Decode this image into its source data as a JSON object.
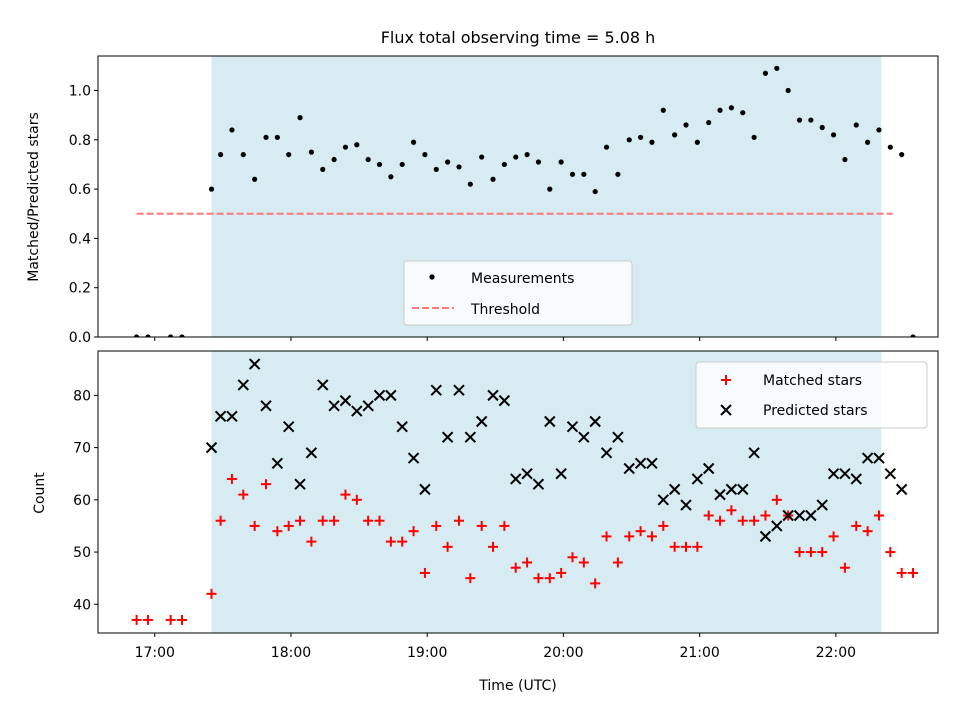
{
  "colors": {
    "shade": "#add8e6",
    "measurement": "#000000",
    "threshold": "#ff7777",
    "matched": "#ff0000",
    "predicted": "#000000"
  },
  "chart_data": [
    {
      "type": "scatter",
      "title": "Flux total observing time = 5.08 h",
      "xlabel": "",
      "ylabel": "Matched/Predicted stars",
      "xlim": [
        "16:35",
        "22:45"
      ],
      "ylim": [
        0,
        1.14
      ],
      "yticks": [
        0.0,
        0.2,
        0.4,
        0.6,
        0.8,
        1.0
      ],
      "ytick_labels": [
        "0.0",
        "0.2",
        "0.4",
        "0.6",
        "0.8",
        "1.0"
      ],
      "xticks": [
        "17:00",
        "18:00",
        "19:00",
        "20:00",
        "21:00",
        "22:00"
      ],
      "shaded_range": [
        "17:25",
        "22:20"
      ],
      "threshold": {
        "name": "Threshold",
        "y": 0.5,
        "x": [
          "16:52",
          "22:25"
        ]
      },
      "legend": {
        "position": "bottom-center",
        "entries": [
          "Measurements",
          "Threshold"
        ]
      },
      "series": [
        {
          "name": "Measurements",
          "points": [
            [
              "16:52",
              0.0
            ],
            [
              "16:57",
              0.0
            ],
            [
              "17:07",
              0.0
            ],
            [
              "17:12",
              0.0
            ],
            [
              "17:25",
              0.6
            ],
            [
              "17:29",
              0.74
            ],
            [
              "17:34",
              0.84
            ],
            [
              "17:39",
              0.74
            ],
            [
              "17:44",
              0.64
            ],
            [
              "17:49",
              0.81
            ],
            [
              "17:54",
              0.81
            ],
            [
              "17:59",
              0.74
            ],
            [
              "18:04",
              0.89
            ],
            [
              "18:09",
              0.75
            ],
            [
              "18:14",
              0.68
            ],
            [
              "18:19",
              0.72
            ],
            [
              "18:24",
              0.77
            ],
            [
              "18:29",
              0.78
            ],
            [
              "18:34",
              0.72
            ],
            [
              "18:39",
              0.7
            ],
            [
              "18:44",
              0.65
            ],
            [
              "18:49",
              0.7
            ],
            [
              "18:54",
              0.79
            ],
            [
              "18:59",
              0.74
            ],
            [
              "19:04",
              0.68
            ],
            [
              "19:09",
              0.71
            ],
            [
              "19:14",
              0.69
            ],
            [
              "19:19",
              0.62
            ],
            [
              "19:24",
              0.73
            ],
            [
              "19:29",
              0.64
            ],
            [
              "19:34",
              0.7
            ],
            [
              "19:39",
              0.73
            ],
            [
              "19:44",
              0.74
            ],
            [
              "19:49",
              0.71
            ],
            [
              "19:54",
              0.6
            ],
            [
              "19:59",
              0.71
            ],
            [
              "20:04",
              0.66
            ],
            [
              "20:09",
              0.66
            ],
            [
              "20:14",
              0.59
            ],
            [
              "20:19",
              0.77
            ],
            [
              "20:24",
              0.66
            ],
            [
              "20:29",
              0.8
            ],
            [
              "20:34",
              0.81
            ],
            [
              "20:39",
              0.79
            ],
            [
              "20:44",
              0.92
            ],
            [
              "20:49",
              0.82
            ],
            [
              "20:54",
              0.86
            ],
            [
              "20:59",
              0.79
            ],
            [
              "21:04",
              0.87
            ],
            [
              "21:09",
              0.92
            ],
            [
              "21:14",
              0.93
            ],
            [
              "21:19",
              0.91
            ],
            [
              "21:24",
              0.81
            ],
            [
              "21:29",
              1.07
            ],
            [
              "21:34",
              1.09
            ],
            [
              "21:39",
              1.0
            ],
            [
              "21:44",
              0.88
            ],
            [
              "21:49",
              0.88
            ],
            [
              "21:54",
              0.85
            ],
            [
              "21:59",
              0.82
            ],
            [
              "22:04",
              0.72
            ],
            [
              "22:09",
              0.86
            ],
            [
              "22:14",
              0.79
            ],
            [
              "22:19",
              0.84
            ],
            [
              "22:24",
              0.77
            ],
            [
              "22:29",
              0.74
            ],
            [
              "22:34",
              0.0
            ]
          ]
        }
      ]
    },
    {
      "type": "scatter",
      "title": "",
      "xlabel": "Time (UTC)",
      "ylabel": "Count",
      "xlim": [
        "16:35",
        "22:45"
      ],
      "ylim": [
        34.5,
        88.5
      ],
      "yticks": [
        40,
        50,
        60,
        70,
        80
      ],
      "ytick_labels": [
        "40",
        "50",
        "60",
        "70",
        "80"
      ],
      "xticks": [
        "17:00",
        "18:00",
        "19:00",
        "20:00",
        "21:00",
        "22:00"
      ],
      "xtick_labels": [
        "17:00",
        "18:00",
        "19:00",
        "20:00",
        "21:00",
        "22:00"
      ],
      "shaded_range": [
        "17:25",
        "22:20"
      ],
      "legend": {
        "position": "top-right",
        "entries": [
          "Matched stars",
          "Predicted stars"
        ]
      },
      "series": [
        {
          "name": "Matched stars",
          "marker": "plus",
          "points": [
            [
              "16:52",
              37
            ],
            [
              "16:57",
              37
            ],
            [
              "17:07",
              37
            ],
            [
              "17:12",
              37
            ],
            [
              "17:25",
              42
            ],
            [
              "17:29",
              56
            ],
            [
              "17:34",
              64
            ],
            [
              "17:39",
              61
            ],
            [
              "17:44",
              55
            ],
            [
              "17:49",
              63
            ],
            [
              "17:54",
              54
            ],
            [
              "17:59",
              55
            ],
            [
              "18:04",
              56
            ],
            [
              "18:09",
              52
            ],
            [
              "18:14",
              56
            ],
            [
              "18:19",
              56
            ],
            [
              "18:24",
              61
            ],
            [
              "18:29",
              60
            ],
            [
              "18:34",
              56
            ],
            [
              "18:39",
              56
            ],
            [
              "18:44",
              52
            ],
            [
              "18:49",
              52
            ],
            [
              "18:54",
              54
            ],
            [
              "18:59",
              46
            ],
            [
              "19:04",
              55
            ],
            [
              "19:09",
              51
            ],
            [
              "19:14",
              56
            ],
            [
              "19:19",
              45
            ],
            [
              "19:24",
              55
            ],
            [
              "19:29",
              51
            ],
            [
              "19:34",
              55
            ],
            [
              "19:39",
              47
            ],
            [
              "19:44",
              48
            ],
            [
              "19:49",
              45
            ],
            [
              "19:54",
              45
            ],
            [
              "19:59",
              46
            ],
            [
              "20:04",
              49
            ],
            [
              "20:09",
              48
            ],
            [
              "20:14",
              44
            ],
            [
              "20:19",
              53
            ],
            [
              "20:24",
              48
            ],
            [
              "20:29",
              53
            ],
            [
              "20:34",
              54
            ],
            [
              "20:39",
              53
            ],
            [
              "20:44",
              55
            ],
            [
              "20:49",
              51
            ],
            [
              "20:54",
              51
            ],
            [
              "20:59",
              51
            ],
            [
              "21:04",
              57
            ],
            [
              "21:09",
              56
            ],
            [
              "21:14",
              58
            ],
            [
              "21:19",
              56
            ],
            [
              "21:24",
              56
            ],
            [
              "21:29",
              57
            ],
            [
              "21:34",
              60
            ],
            [
              "21:39",
              57
            ],
            [
              "21:44",
              50
            ],
            [
              "21:49",
              50
            ],
            [
              "21:54",
              50
            ],
            [
              "21:59",
              53
            ],
            [
              "22:04",
              47
            ],
            [
              "22:09",
              55
            ],
            [
              "22:14",
              54
            ],
            [
              "22:19",
              57
            ],
            [
              "22:24",
              50
            ],
            [
              "22:29",
              46
            ],
            [
              "22:34",
              46
            ]
          ]
        },
        {
          "name": "Predicted stars",
          "marker": "x",
          "points": [
            [
              "17:25",
              70
            ],
            [
              "17:29",
              76
            ],
            [
              "17:34",
              76
            ],
            [
              "17:39",
              82
            ],
            [
              "17:44",
              86
            ],
            [
              "17:49",
              78
            ],
            [
              "17:54",
              67
            ],
            [
              "17:59",
              74
            ],
            [
              "18:04",
              63
            ],
            [
              "18:09",
              69
            ],
            [
              "18:14",
              82
            ],
            [
              "18:19",
              78
            ],
            [
              "18:24",
              79
            ],
            [
              "18:29",
              77
            ],
            [
              "18:34",
              78
            ],
            [
              "18:39",
              80
            ],
            [
              "18:44",
              80
            ],
            [
              "18:49",
              74
            ],
            [
              "18:54",
              68
            ],
            [
              "18:59",
              62
            ],
            [
              "19:04",
              81
            ],
            [
              "19:09",
              72
            ],
            [
              "19:14",
              81
            ],
            [
              "19:19",
              72
            ],
            [
              "19:24",
              75
            ],
            [
              "19:29",
              80
            ],
            [
              "19:34",
              79
            ],
            [
              "19:39",
              64
            ],
            [
              "19:44",
              65
            ],
            [
              "19:49",
              63
            ],
            [
              "19:54",
              75
            ],
            [
              "19:59",
              65
            ],
            [
              "20:04",
              74
            ],
            [
              "20:09",
              72
            ],
            [
              "20:14",
              75
            ],
            [
              "20:19",
              69
            ],
            [
              "20:24",
              72
            ],
            [
              "20:29",
              66
            ],
            [
              "20:34",
              67
            ],
            [
              "20:39",
              67
            ],
            [
              "20:44",
              60
            ],
            [
              "20:49",
              62
            ],
            [
              "20:54",
              59
            ],
            [
              "20:59",
              64
            ],
            [
              "21:04",
              66
            ],
            [
              "21:09",
              61
            ],
            [
              "21:14",
              62
            ],
            [
              "21:19",
              62
            ],
            [
              "21:24",
              69
            ],
            [
              "21:29",
              53
            ],
            [
              "21:34",
              55
            ],
            [
              "21:39",
              57
            ],
            [
              "21:44",
              57
            ],
            [
              "21:49",
              57
            ],
            [
              "21:54",
              59
            ],
            [
              "21:59",
              65
            ],
            [
              "22:04",
              65
            ],
            [
              "22:09",
              64
            ],
            [
              "22:14",
              68
            ],
            [
              "22:19",
              68
            ],
            [
              "22:24",
              65
            ],
            [
              "22:29",
              62
            ]
          ]
        }
      ]
    }
  ]
}
